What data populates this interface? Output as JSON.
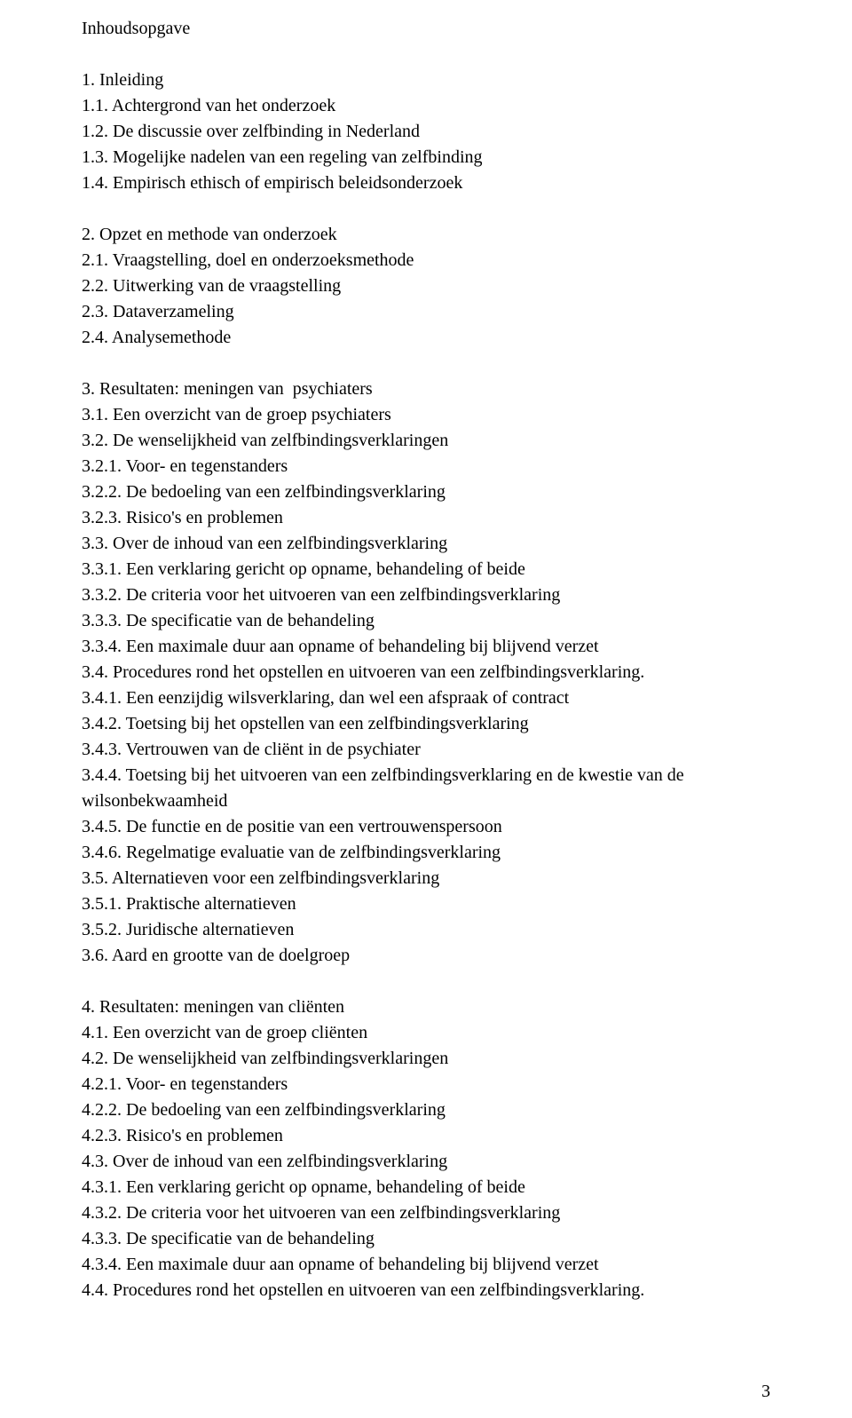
{
  "typography": {
    "font_family": "Times New Roman",
    "font_size_pt": 15,
    "line_height": 1.45,
    "text_color": "#000000",
    "background_color": "#ffffff"
  },
  "page_number": "3",
  "title": "Inhoudsopgave",
  "sections": [
    {
      "heading": "1. Inleiding",
      "items": [
        "1.1. Achtergrond van het onderzoek",
        "1.2. De discussie over zelfbinding in Nederland",
        "1.3. Mogelijke nadelen van een regeling van zelfbinding",
        "1.4. Empirisch ethisch of empirisch beleidsonderzoek"
      ]
    },
    {
      "heading": "2. Opzet en methode van onderzoek",
      "items": [
        "2.1. Vraagstelling, doel en onderzoeksmethode",
        "2.2. Uitwerking van de vraagstelling",
        "2.3. Dataverzameling",
        "2.4. Analysemethode"
      ]
    },
    {
      "heading": "3. Resultaten: meningen van  psychiaters",
      "items": [
        "3.1. Een overzicht van de groep psychiaters",
        "3.2. De wenselijkheid van zelfbindingsverklaringen",
        "3.2.1. Voor- en tegenstanders",
        "3.2.2. De bedoeling van een zelfbindingsverklaring",
        "3.2.3. Risico's en problemen",
        "3.3. Over de inhoud van een zelfbindingsverklaring",
        "3.3.1. Een verklaring gericht op opname, behandeling of beide",
        "3.3.2. De criteria voor het uitvoeren van een zelfbindingsverklaring",
        "3.3.3. De specificatie van de behandeling",
        "3.3.4. Een maximale duur aan opname of behandeling bij blijvend verzet",
        "3.4. Procedures rond het opstellen en uitvoeren van een zelfbindingsverklaring.",
        "3.4.1. Een eenzijdig wilsverklaring, dan wel een afspraak of contract",
        "3.4.2. Toetsing bij het opstellen van een zelfbindingsverklaring",
        "3.4.3. Vertrouwen van de cliënt in de psychiater",
        "3.4.4. Toetsing bij het uitvoeren van een zelfbindingsverklaring en de kwestie van de wilsonbekwaamheid",
        "3.4.5. De functie en de positie van een vertrouwenspersoon",
        "3.4.6. Regelmatige evaluatie van de zelfbindingsverklaring",
        "3.5. Alternatieven voor een zelfbindingsverklaring",
        "3.5.1. Praktische alternatieven",
        "3.5.2. Juridische alternatieven",
        "3.6. Aard en grootte van de doelgroep"
      ]
    },
    {
      "heading": "4. Resultaten: meningen van cliënten",
      "items": [
        "4.1. Een overzicht van de groep cliënten",
        "4.2. De wenselijkheid van zelfbindingsverklaringen",
        "4.2.1. Voor- en tegenstanders",
        "4.2.2. De bedoeling van een zelfbindingsverklaring",
        "4.2.3. Risico's en problemen",
        "4.3. Over de inhoud van een zelfbindingsverklaring",
        "4.3.1. Een verklaring gericht op opname, behandeling of beide",
        "4.3.2. De criteria voor het uitvoeren van een zelfbindingsverklaring",
        "4.3.3. De specificatie van de behandeling",
        "4.3.4. Een maximale duur aan opname of behandeling bij blijvend verzet",
        "4.4. Procedures rond het opstellen en uitvoeren van een zelfbindingsverklaring."
      ]
    }
  ]
}
